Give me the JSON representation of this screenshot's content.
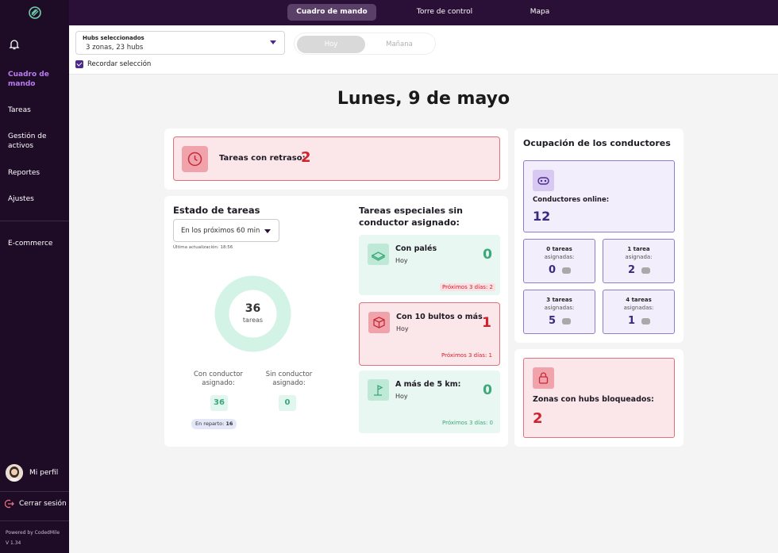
{
  "sidebar": {
    "items": [
      {
        "label": "Cuadro de mando",
        "active": true
      },
      {
        "label": "Tareas",
        "active": false
      },
      {
        "label": "Gestión de activos",
        "active": false
      },
      {
        "label": "Reportes",
        "active": false
      },
      {
        "label": "Ajustes",
        "active": false
      },
      {
        "label": "E-commerce",
        "active": false
      }
    ],
    "profile_label": "Mi perfil",
    "logout_label": "Cerrar sesión",
    "powered_by": "Powered by CodedMile",
    "version": "V 1.34"
  },
  "topnav": {
    "tabs": [
      {
        "label": "Cuadro de mando",
        "active": true
      },
      {
        "label": "Torre de control",
        "active": false
      },
      {
        "label": "Mapa",
        "active": false
      }
    ]
  },
  "filters": {
    "hubs_label": "Hubs seleccionados",
    "hubs_value": "3 zonas, 23 hubs",
    "day_options": [
      {
        "label": "Hoy",
        "active": true
      },
      {
        "label": "Mañana",
        "active": false
      }
    ],
    "remember_label": "Recordar selección",
    "remember_checked": true
  },
  "page_title": "Lunes, 9 de mayo",
  "delayed": {
    "label": "Tareas con retraso:",
    "value": "2"
  },
  "task_status": {
    "title": "Estado de tareas",
    "range_value": "En los próximos 60 min",
    "last_update": "Última actualización: 18:56",
    "total": "36",
    "total_label": "tareas",
    "with_driver_label": "Con conductor asignado:",
    "with_driver_value": "36",
    "without_driver_label": "Sin conductor asignado:",
    "without_driver_value": "0",
    "in_delivery_label": "En reparto:",
    "in_delivery_value": "16"
  },
  "special_tasks": {
    "title": "Tareas especiales sin conductor asignado:",
    "cards": [
      {
        "name": "Con palés",
        "day": "Hoy",
        "value": "0",
        "next": "Próximos 3 días: 2",
        "status": "ok"
      },
      {
        "name": "Con 10 bultos o más",
        "day": "Hoy",
        "value": "1",
        "next": "Próximos 3 días: 1",
        "status": "alert"
      },
      {
        "name": "A más de 5 km:",
        "day": "Hoy",
        "value": "0",
        "next": "Próximos 3 días: 0",
        "status": "ok"
      }
    ]
  },
  "drivers": {
    "title": "Ocupación de los conductores",
    "online_label": "Conductores online:",
    "online_value": "12",
    "breakdown": [
      {
        "line1": "0 tareas",
        "line2": "asignadas:",
        "value": "0"
      },
      {
        "line1": "1 tarea",
        "line2": "asignada:",
        "value": "2"
      },
      {
        "line1": "3 tareas",
        "line2": "asignadas:",
        "value": "5"
      },
      {
        "line1": "4 tareas",
        "line2": "asignadas:",
        "value": "1"
      }
    ]
  },
  "blocked_hubs": {
    "label": "Zonas con hubs bloqueados:",
    "value": "2"
  },
  "colors": {
    "sidebar_bg": "#1e0b26",
    "accent_purple": "#b97cf0",
    "alert_red": "#d0222e",
    "ok_green": "#3aa878"
  }
}
